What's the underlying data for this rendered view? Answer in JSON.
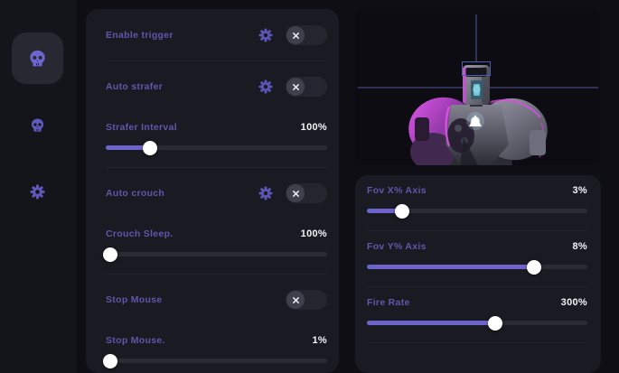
{
  "colors": {
    "accent": "#6c64cc",
    "label": "#5e57ab",
    "value_text": "#f2f2f6",
    "card_bg": "#1a1a22",
    "page_bg": "#0e0e14",
    "sidebar_bg": "#14141b",
    "toggle_bg": "#25252f",
    "toggle_knob": "#40404c",
    "track_bg": "#2b2b35",
    "crosshair": "#55559a",
    "esp_box": "#4a5fae"
  },
  "sidebar": {
    "items": [
      {
        "id": "aim-tab",
        "icon": "skull-icon",
        "active": true
      },
      {
        "id": "trigger-tab",
        "icon": "skull-icon",
        "active": false
      },
      {
        "id": "settings-tab",
        "icon": "gear-icon",
        "active": false
      }
    ]
  },
  "features": {
    "enable_trigger": {
      "label": "Enable trigger",
      "state": "off",
      "settings_icon": "gear-icon",
      "toggle_icon": "close-icon"
    },
    "auto_strafer": {
      "label": "Auto strafer",
      "state": "off",
      "settings_icon": "gear-icon",
      "toggle_icon": "close-icon"
    },
    "strafer_interval": {
      "label": "Strafer Interval",
      "value": "100%",
      "fill_pct": 20
    },
    "auto_crouch": {
      "label": "Auto crouch",
      "state": "off",
      "settings_icon": "gear-icon",
      "toggle_icon": "close-icon"
    },
    "crouch_sleep": {
      "label": "Crouch Sleep.",
      "value": "100%",
      "fill_pct": 2
    },
    "stop_mouse": {
      "label": "Stop Mouse",
      "state": "off",
      "toggle_icon": "close-icon"
    },
    "stop_mouse_amt": {
      "label": "Stop Mouse.",
      "value": "1%",
      "fill_pct": 2
    }
  },
  "aim": {
    "preview": {
      "description": "robot-target-preview",
      "crosshair": true,
      "esp_box": true
    },
    "fov_x": {
      "label": "Fov X% Axis",
      "value": "3%",
      "fill_pct": 16
    },
    "fov_y": {
      "label": "Fov Y% Axis",
      "value": "8%",
      "fill_pct": 76
    },
    "fire_rate": {
      "label": "Fire Rate",
      "value": "300%",
      "fill_pct": 58
    }
  }
}
